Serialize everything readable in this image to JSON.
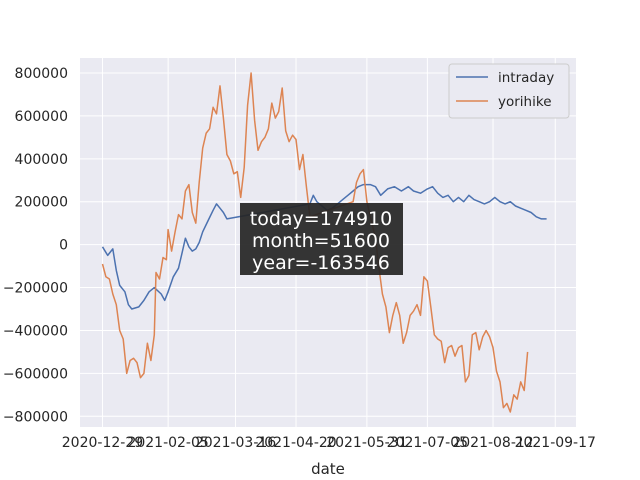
{
  "chart_data": {
    "type": "line",
    "title": "",
    "xlabel": "date",
    "ylabel": "",
    "x_tick_labels": [
      "2020-12-29",
      "2021-02-05",
      "2021-03-16",
      "2021-04-20",
      "2021-05-31",
      "2021-07-05",
      "2021-08-12",
      "2021-09-17"
    ],
    "x_ticks": [
      "2020-12-29",
      "2021-02-05",
      "2021-03-16",
      "2021-04-20",
      "2021-05-31",
      "2021-07-05",
      "2021-08-12",
      "2021-09-17"
    ],
    "xlim": [
      "2020-12-16",
      "2021-09-29"
    ],
    "y_ticks": [
      -800000,
      -600000,
      -400000,
      -200000,
      0,
      200000,
      400000,
      600000,
      800000
    ],
    "y_tick_labels": [
      "−800000",
      "−600000",
      "−400000",
      "−200000",
      "0",
      "200000",
      "400000",
      "600000",
      "800000"
    ],
    "ylim": [
      -850000,
      870000
    ],
    "grid": true,
    "legend_position": "top-right",
    "colors": {
      "background": "#eaeaf2",
      "grid": "#ffffff",
      "intraday": "#4c72b0",
      "yorihike": "#dd8452"
    },
    "series": [
      {
        "name": "intraday",
        "points": [
          [
            "2020-12-29",
            -10000
          ],
          [
            "2021-01-01",
            -50000
          ],
          [
            "2021-01-04",
            -20000
          ],
          [
            "2021-01-06",
            -120000
          ],
          [
            "2021-01-08",
            -190000
          ],
          [
            "2021-01-11",
            -220000
          ],
          [
            "2021-01-13",
            -280000
          ],
          [
            "2021-01-15",
            -300000
          ],
          [
            "2021-01-19",
            -290000
          ],
          [
            "2021-01-22",
            -260000
          ],
          [
            "2021-01-25",
            -220000
          ],
          [
            "2021-01-28",
            -200000
          ],
          [
            "2021-02-01",
            -230000
          ],
          [
            "2021-02-03",
            -260000
          ],
          [
            "2021-02-05",
            -220000
          ],
          [
            "2021-02-08",
            -150000
          ],
          [
            "2021-02-11",
            -110000
          ],
          [
            "2021-02-13",
            -40000
          ],
          [
            "2021-02-15",
            30000
          ],
          [
            "2021-02-17",
            -10000
          ],
          [
            "2021-02-19",
            -30000
          ],
          [
            "2021-02-21",
            -20000
          ],
          [
            "2021-02-23",
            10000
          ],
          [
            "2021-02-25",
            60000
          ],
          [
            "2021-02-28",
            110000
          ],
          [
            "2021-03-03",
            160000
          ],
          [
            "2021-03-05",
            190000
          ],
          [
            "2021-03-07",
            170000
          ],
          [
            "2021-03-09",
            150000
          ],
          [
            "2021-03-11",
            120000
          ],
          [
            "2021-04-28",
            190000
          ],
          [
            "2021-04-30",
            230000
          ],
          [
            "2021-05-02",
            200000
          ],
          [
            "2021-05-05",
            180000
          ],
          [
            "2021-05-08",
            160000
          ],
          [
            "2021-05-11",
            170000
          ],
          [
            "2021-05-14",
            190000
          ],
          [
            "2021-05-17",
            210000
          ],
          [
            "2021-05-20",
            230000
          ],
          [
            "2021-05-23",
            250000
          ],
          [
            "2021-05-26",
            270000
          ],
          [
            "2021-05-29",
            280000
          ],
          [
            "2021-06-02",
            280000
          ],
          [
            "2021-06-05",
            270000
          ],
          [
            "2021-06-08",
            230000
          ],
          [
            "2021-06-12",
            260000
          ],
          [
            "2021-06-16",
            270000
          ],
          [
            "2021-06-20",
            250000
          ],
          [
            "2021-06-24",
            270000
          ],
          [
            "2021-06-27",
            250000
          ],
          [
            "2021-07-01",
            240000
          ],
          [
            "2021-07-05",
            260000
          ],
          [
            "2021-07-08",
            270000
          ],
          [
            "2021-07-11",
            240000
          ],
          [
            "2021-07-14",
            220000
          ],
          [
            "2021-07-17",
            230000
          ],
          [
            "2021-07-20",
            200000
          ],
          [
            "2021-07-23",
            220000
          ],
          [
            "2021-07-26",
            200000
          ],
          [
            "2021-07-29",
            230000
          ],
          [
            "2021-08-01",
            210000
          ],
          [
            "2021-08-04",
            200000
          ],
          [
            "2021-08-07",
            190000
          ],
          [
            "2021-08-10",
            200000
          ],
          [
            "2021-08-13",
            220000
          ],
          [
            "2021-08-16",
            200000
          ],
          [
            "2021-08-19",
            190000
          ],
          [
            "2021-08-22",
            200000
          ],
          [
            "2021-08-25",
            180000
          ],
          [
            "2021-08-28",
            170000
          ],
          [
            "2021-08-31",
            160000
          ],
          [
            "2021-09-03",
            150000
          ],
          [
            "2021-09-06",
            130000
          ],
          [
            "2021-09-09",
            120000
          ],
          [
            "2021-09-12",
            120000
          ]
        ]
      },
      {
        "name": "yorihike",
        "points": [
          [
            "2020-12-29",
            -90000
          ],
          [
            "2020-12-31",
            -150000
          ],
          [
            "2021-01-02",
            -160000
          ],
          [
            "2021-01-04",
            -230000
          ],
          [
            "2021-01-06",
            -280000
          ],
          [
            "2021-01-08",
            -400000
          ],
          [
            "2021-01-10",
            -440000
          ],
          [
            "2021-01-12",
            -600000
          ],
          [
            "2021-01-14",
            -540000
          ],
          [
            "2021-01-16",
            -530000
          ],
          [
            "2021-01-18",
            -550000
          ],
          [
            "2021-01-20",
            -620000
          ],
          [
            "2021-01-22",
            -600000
          ],
          [
            "2021-01-24",
            -460000
          ],
          [
            "2021-01-26",
            -540000
          ],
          [
            "2021-01-28",
            -420000
          ],
          [
            "2021-01-29",
            -130000
          ],
          [
            "2021-01-31",
            -160000
          ],
          [
            "2021-02-02",
            -60000
          ],
          [
            "2021-02-04",
            -70000
          ],
          [
            "2021-02-05",
            70000
          ],
          [
            "2021-02-07",
            -30000
          ],
          [
            "2021-02-09",
            60000
          ],
          [
            "2021-02-11",
            140000
          ],
          [
            "2021-02-13",
            120000
          ],
          [
            "2021-02-15",
            250000
          ],
          [
            "2021-02-17",
            280000
          ],
          [
            "2021-02-19",
            150000
          ],
          [
            "2021-02-21",
            100000
          ],
          [
            "2021-02-23",
            290000
          ],
          [
            "2021-02-25",
            450000
          ],
          [
            "2021-02-27",
            520000
          ],
          [
            "2021-03-01",
            540000
          ],
          [
            "2021-03-03",
            640000
          ],
          [
            "2021-03-05",
            610000
          ],
          [
            "2021-03-07",
            740000
          ],
          [
            "2021-03-09",
            590000
          ],
          [
            "2021-03-11",
            420000
          ],
          [
            "2021-03-13",
            390000
          ],
          [
            "2021-03-15",
            330000
          ],
          [
            "2021-03-17",
            340000
          ],
          [
            "2021-03-19",
            220000
          ],
          [
            "2021-03-21",
            360000
          ],
          [
            "2021-03-23",
            650000
          ],
          [
            "2021-03-25",
            800000
          ],
          [
            "2021-03-27",
            580000
          ],
          [
            "2021-03-29",
            440000
          ],
          [
            "2021-03-31",
            480000
          ],
          [
            "2021-04-02",
            500000
          ],
          [
            "2021-04-04",
            540000
          ],
          [
            "2021-04-06",
            660000
          ],
          [
            "2021-04-08",
            590000
          ],
          [
            "2021-04-10",
            620000
          ],
          [
            "2021-04-12",
            730000
          ],
          [
            "2021-04-14",
            530000
          ],
          [
            "2021-04-16",
            480000
          ],
          [
            "2021-04-18",
            510000
          ],
          [
            "2021-04-20",
            490000
          ],
          [
            "2021-04-22",
            350000
          ],
          [
            "2021-04-24",
            420000
          ],
          [
            "2021-04-26",
            270000
          ],
          [
            "2021-04-28",
            130000
          ],
          [
            "2021-05-23",
            200000
          ],
          [
            "2021-05-25",
            290000
          ],
          [
            "2021-05-27",
            330000
          ],
          [
            "2021-05-29",
            350000
          ],
          [
            "2021-05-31",
            200000
          ],
          [
            "2021-06-02",
            130000
          ],
          [
            "2021-06-05",
            30000
          ],
          [
            "2021-06-07",
            -110000
          ],
          [
            "2021-06-09",
            -230000
          ],
          [
            "2021-06-11",
            -290000
          ],
          [
            "2021-06-13",
            -410000
          ],
          [
            "2021-06-15",
            -330000
          ],
          [
            "2021-06-17",
            -270000
          ],
          [
            "2021-06-19",
            -330000
          ],
          [
            "2021-06-21",
            -460000
          ],
          [
            "2021-06-23",
            -410000
          ],
          [
            "2021-06-25",
            -330000
          ],
          [
            "2021-06-27",
            -310000
          ],
          [
            "2021-06-29",
            -280000
          ],
          [
            "2021-07-01",
            -330000
          ],
          [
            "2021-07-03",
            -150000
          ],
          [
            "2021-07-05",
            -170000
          ],
          [
            "2021-07-07",
            -290000
          ],
          [
            "2021-07-09",
            -420000
          ],
          [
            "2021-07-11",
            -440000
          ],
          [
            "2021-07-13",
            -450000
          ],
          [
            "2021-07-15",
            -550000
          ],
          [
            "2021-07-17",
            -480000
          ],
          [
            "2021-07-19",
            -470000
          ],
          [
            "2021-07-21",
            -520000
          ],
          [
            "2021-07-23",
            -480000
          ],
          [
            "2021-07-25",
            -470000
          ],
          [
            "2021-07-27",
            -640000
          ],
          [
            "2021-07-29",
            -610000
          ],
          [
            "2021-07-31",
            -420000
          ],
          [
            "2021-08-02",
            -410000
          ],
          [
            "2021-08-04",
            -490000
          ],
          [
            "2021-08-06",
            -430000
          ],
          [
            "2021-08-08",
            -400000
          ],
          [
            "2021-08-10",
            -430000
          ],
          [
            "2021-08-12",
            -480000
          ],
          [
            "2021-08-14",
            -590000
          ],
          [
            "2021-08-16",
            -640000
          ],
          [
            "2021-08-18",
            -760000
          ],
          [
            "2021-08-20",
            -740000
          ],
          [
            "2021-08-22",
            -780000
          ],
          [
            "2021-08-24",
            -700000
          ],
          [
            "2021-08-26",
            -720000
          ],
          [
            "2021-08-28",
            -640000
          ],
          [
            "2021-08-30",
            -680000
          ],
          [
            "2021-09-01",
            -500000
          ]
        ]
      }
    ],
    "overlay_text": [
      "today=174910",
      "month=51600",
      "year=-163546"
    ]
  }
}
